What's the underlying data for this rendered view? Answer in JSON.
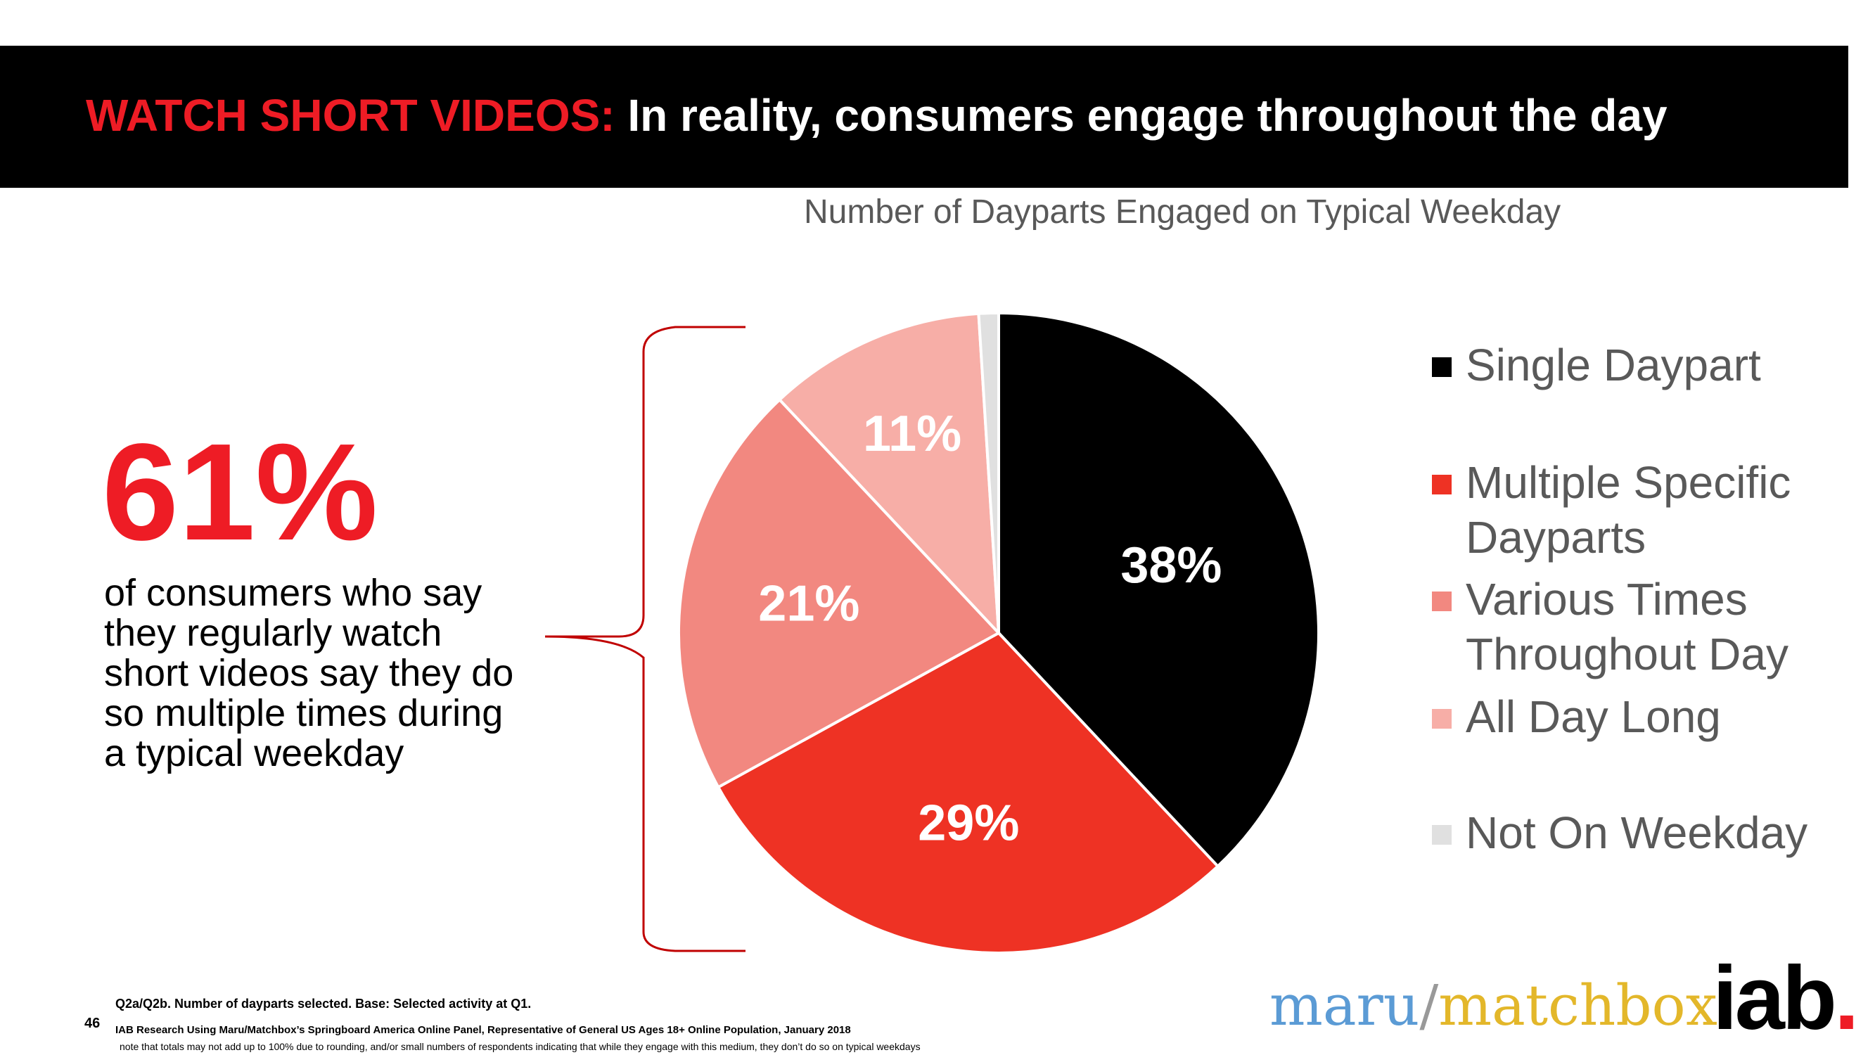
{
  "header": {
    "title_red": "WATCH SHORT VIDEOS:",
    "title_white": "In reality, consumers engage throughout the day"
  },
  "stat": {
    "value": "61%",
    "description": "of consumers who say they regularly watch short videos say they do so multiple times during a typical weekday"
  },
  "chart_data": {
    "type": "pie",
    "title": "Number of Dayparts Engaged on Typical Weekday",
    "slices": [
      {
        "label": "Single Daypart",
        "value": 38,
        "display": "38%",
        "color": "#000000"
      },
      {
        "label": "Multiple Specific Dayparts",
        "value": 29,
        "display": "29%",
        "color": "#ee3224"
      },
      {
        "label": "Various Times Throughout Day",
        "value": 21,
        "display": "21%",
        "color": "#f28880"
      },
      {
        "label": "All Day Long",
        "value": 11,
        "display": "11%",
        "color": "#f7aea7"
      },
      {
        "label": "Not On Weekday",
        "value": 1,
        "display": "",
        "color": "#e0e0e0"
      }
    ],
    "legend_position": "right"
  },
  "footnotes": {
    "line1": "Q2a/Q2b. Number of dayparts selected. Base: Selected activity at Q1.",
    "page_number": "46",
    "line2": "IAB Research Using Maru/Matchbox’s Springboard America Online Panel, Representative of General US Ages 18+ Online Population, January 2018",
    "line3": "note that totals may not add up to 100% due to rounding, and/or small numbers of respondents indicating that while they engage with this medium, they don’t do so on typical weekdays"
  },
  "logos": {
    "maru": "maru",
    "slash": "/",
    "matchbox": "matchbox",
    "iab": "iab",
    "iab_dot": "."
  }
}
